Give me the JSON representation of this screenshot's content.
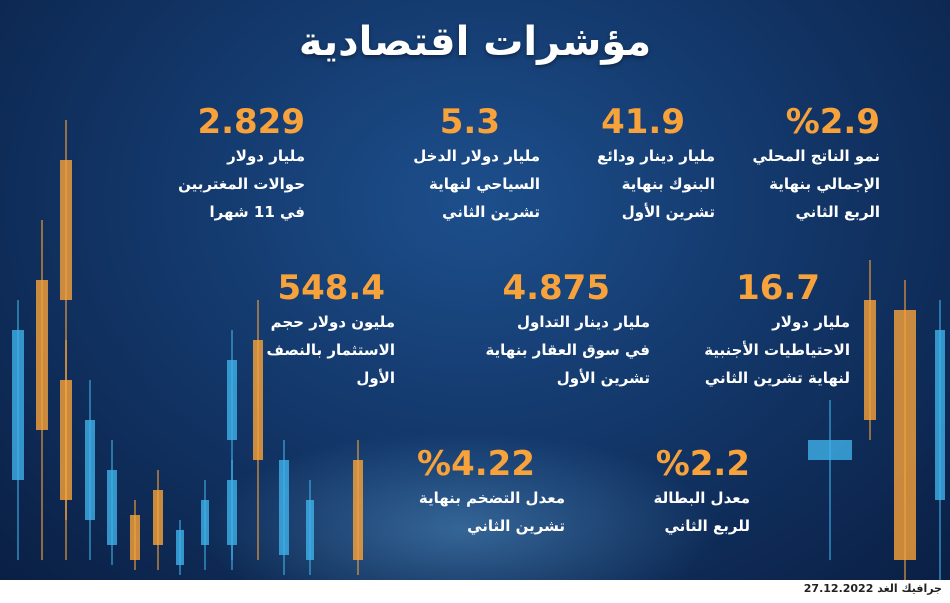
{
  "title": "مؤشرات اقتصادية",
  "stats": [
    {
      "value": "%2.9",
      "desc": "نمو الناتج المحلي\nالإجمالي بنهاية\nالربع الثاني"
    },
    {
      "value": "41.9",
      "desc": "مليار دينار ودائع\nالبنوك بنهاية\nتشرين الأول"
    },
    {
      "value": "5.3",
      "desc": "مليار دولار الدخل\nالسياحي لنهاية\nتشرين الثاني"
    },
    {
      "value": "2.829",
      "desc": "مليار دولار\nحوالات المغتربين\nفي 11 شهرا"
    },
    {
      "value": "16.7",
      "desc": "مليار دولار\nالاحتياطيات الأجنبية\nلنهاية تشرين الثاني"
    },
    {
      "value": "4.875",
      "desc": "مليار دينار التداول\nفي سوق العقار بنهاية\nتشرين الأول"
    },
    {
      "value": "548.4",
      "desc": "مليون دولار حجم\nالاستثمار بالنصف\nالأول"
    },
    {
      "value": "%2.2",
      "desc": "معدل البطالة\nللربع الثاني"
    },
    {
      "value": "%4.22",
      "desc": "معدل التضخم بنهاية\nتشرين الثاني"
    }
  ],
  "footer": {
    "date": "27.12.2022",
    "credit": "جرافيك الغد"
  },
  "colors": {
    "accent": "#f7a23a",
    "candle_blue": "#3fb0e8",
    "background": "#13386b"
  }
}
